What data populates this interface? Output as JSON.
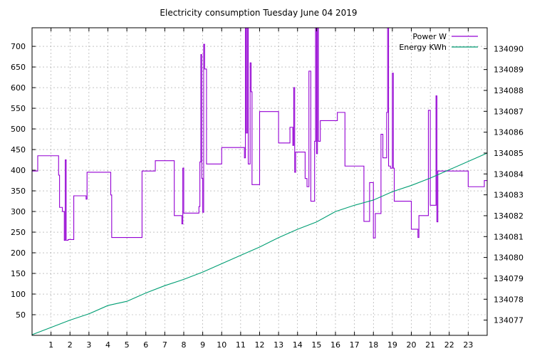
{
  "chart_data": {
    "type": "line",
    "title": "Electricity consumption Tuesday June 04 2019",
    "legend_position": "top-right",
    "grid": true,
    "x_ticks": [
      1,
      2,
      3,
      4,
      5,
      6,
      7,
      8,
      9,
      10,
      11,
      12,
      13,
      14,
      15,
      16,
      17,
      18,
      19,
      20,
      21,
      22,
      23
    ],
    "xlim": [
      0,
      24
    ],
    "y_ticks": [
      50,
      100,
      150,
      200,
      250,
      300,
      350,
      400,
      450,
      500,
      550,
      600,
      650,
      700
    ],
    "ylim": [
      0,
      745
    ],
    "y2_ticks": [
      134077,
      134078,
      134079,
      134080,
      134081,
      134082,
      134083,
      134084,
      134085,
      134086,
      134087,
      134088,
      134089,
      134090
    ],
    "y2lim": [
      134076.27,
      134091.0
    ],
    "series": [
      {
        "name": "Power W",
        "color": "#9400d3",
        "axis": "left",
        "step": true,
        "x": [
          0,
          0.3,
          0.9,
          1.4,
          1.45,
          1.6,
          1.7,
          1.75,
          1.8,
          1.9,
          2.2,
          2.8,
          2.85,
          2.9,
          3.0,
          4.1,
          4.15,
          4.2,
          5.3,
          5.8,
          6.5,
          7.5,
          7.9,
          7.95,
          8.0,
          8.6,
          8.8,
          8.85,
          8.9,
          8.95,
          9.0,
          9.05,
          9.1,
          9.2,
          9.5,
          10.0,
          10.5,
          11.1,
          11.2,
          11.25,
          11.3,
          11.35,
          11.4,
          11.5,
          11.55,
          11.6,
          11.8,
          12.0,
          12.5,
          13.0,
          13.5,
          13.6,
          13.7,
          13.75,
          13.8,
          13.85,
          13.9,
          14.3,
          14.4,
          14.5,
          14.6,
          14.7,
          14.8,
          14.9,
          14.95,
          15.0,
          15.05,
          15.1,
          15.2,
          15.5,
          16.0,
          16.1,
          16.5,
          17.5,
          17.6,
          17.7,
          17.8,
          18.0,
          18.1,
          18.4,
          18.5,
          18.6,
          18.7,
          18.75,
          18.8,
          18.9,
          19.0,
          19.05,
          19.1,
          19.7,
          20.0,
          20.3,
          20.35,
          20.4,
          20.5,
          20.9,
          21.0,
          21.1,
          21.3,
          21.35,
          21.4,
          21.6,
          22.0,
          22.5,
          23.0,
          23.5,
          23.85,
          24.0
        ],
        "y": [
          398,
          435,
          435,
          388,
          310,
          300,
          230,
          425,
          230,
          232,
          338,
          338,
          330,
          395,
          395,
          395,
          340,
          237,
          237,
          398,
          423,
          290,
          270,
          405,
          296,
          296,
          312,
          420,
          680,
          380,
          298,
          705,
          645,
          415,
          415,
          455,
          455,
          455,
          430,
          745,
          490,
          745,
          415,
          660,
          590,
          365,
          365,
          542,
          542,
          466,
          466,
          504,
          504,
          460,
          600,
          395,
          444,
          444,
          380,
          360,
          640,
          325,
          325,
          470,
          745,
          440,
          745,
          470,
          520,
          520,
          520,
          540,
          410,
          276,
          276,
          276,
          370,
          236,
          295,
          487,
          430,
          430,
          540,
          745,
          410,
          405,
          635,
          405,
          325,
          325,
          257,
          257,
          237,
          290,
          290,
          545,
          315,
          315,
          580,
          275,
          398,
          398,
          398,
          398,
          360,
          360,
          375,
          375
        ]
      },
      {
        "name": "Energy KWh",
        "color": "#009e73",
        "axis": "right",
        "step": false,
        "x": [
          0,
          1,
          2,
          3,
          4,
          5,
          6,
          7,
          8,
          9,
          10,
          11,
          12,
          13,
          14,
          15,
          16,
          17,
          18,
          19,
          20,
          21,
          22,
          23,
          24
        ],
        "y": [
          134076.3,
          134076.65,
          134077.0,
          134077.3,
          134077.7,
          134077.9,
          134078.3,
          134078.65,
          134078.95,
          134079.3,
          134079.7,
          134080.1,
          134080.5,
          134080.95,
          134081.35,
          134081.7,
          134082.2,
          134082.5,
          134082.75,
          134083.15,
          134083.45,
          134083.8,
          134084.2,
          134084.6,
          134085.0
        ]
      }
    ]
  }
}
